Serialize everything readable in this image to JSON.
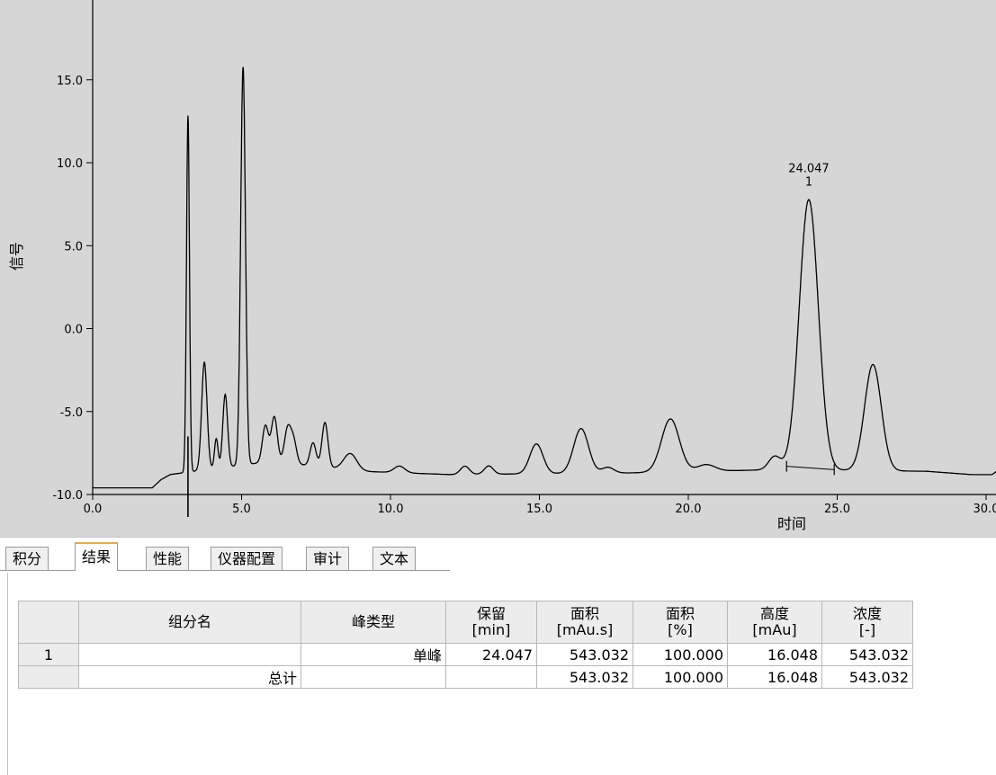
{
  "chart_data": {
    "type": "line",
    "title": "",
    "xlabel": "时间",
    "ylabel": "信号",
    "xlim": [
      0,
      30.5
    ],
    "ylim": [
      -10,
      19
    ],
    "x_ticks": [
      "0.0",
      "5.0",
      "10.0",
      "15.0",
      "20.0",
      "25.0",
      "30.0"
    ],
    "y_ticks": [
      "-10.0",
      "-5.0",
      "0.0",
      "5.0",
      "10.0",
      "15.0"
    ],
    "x_tick_values": [
      0,
      5,
      10,
      15,
      20,
      25,
      30
    ],
    "y_tick_values": [
      -10,
      -5,
      0,
      5,
      10,
      15
    ],
    "baseline": [
      [
        0,
        -9.6
      ],
      [
        2.0,
        -9.6
      ],
      [
        2.3,
        -9.1
      ],
      [
        2.6,
        -8.8
      ],
      [
        3.0,
        -8.7
      ],
      [
        6.0,
        -8.0
      ],
      [
        9.0,
        -8.6
      ],
      [
        12.0,
        -8.8
      ],
      [
        18.0,
        -8.7
      ],
      [
        23.0,
        -8.5
      ],
      [
        28.0,
        -8.6
      ],
      [
        29.5,
        -8.8
      ],
      [
        30.2,
        -8.8
      ],
      [
        30.5,
        -8.4
      ]
    ],
    "peaks": [
      {
        "rt": 3.2,
        "height": 21.5,
        "width": 0.05
      },
      {
        "rt": 3.75,
        "height": 6.5,
        "width": 0.09
      },
      {
        "rt": 4.15,
        "height": 1.8,
        "width": 0.06
      },
      {
        "rt": 4.45,
        "height": 4.4,
        "width": 0.08
      },
      {
        "rt": 5.05,
        "height": 24.0,
        "width": 0.08
      },
      {
        "rt": 5.8,
        "height": 2.2,
        "width": 0.1
      },
      {
        "rt": 6.1,
        "height": 2.7,
        "width": 0.1
      },
      {
        "rt": 6.55,
        "height": 2.1,
        "width": 0.11
      },
      {
        "rt": 6.75,
        "height": 1.3,
        "width": 0.1
      },
      {
        "rt": 7.4,
        "height": 1.4,
        "width": 0.1
      },
      {
        "rt": 7.8,
        "height": 2.7,
        "width": 0.1
      },
      {
        "rt": 8.65,
        "height": 1.0,
        "width": 0.22
      },
      {
        "rt": 10.3,
        "height": 0.4,
        "width": 0.18
      },
      {
        "rt": 12.5,
        "height": 0.5,
        "width": 0.15
      },
      {
        "rt": 13.3,
        "height": 0.5,
        "width": 0.15
      },
      {
        "rt": 14.9,
        "height": 1.8,
        "width": 0.22
      },
      {
        "rt": 16.4,
        "height": 2.7,
        "width": 0.25
      },
      {
        "rt": 17.3,
        "height": 0.35,
        "width": 0.2
      },
      {
        "rt": 19.4,
        "height": 3.2,
        "width": 0.3
      },
      {
        "rt": 20.6,
        "height": 0.4,
        "width": 0.3
      },
      {
        "rt": 22.9,
        "height": 0.8,
        "width": 0.2
      },
      {
        "rt": 24.047,
        "height": 16.3,
        "width": 0.32
      },
      {
        "rt": 26.2,
        "height": 6.4,
        "width": 0.28
      }
    ],
    "peak_annotation": {
      "retention_label": "24.047",
      "number_label": "1",
      "x": 24.047,
      "y": 7.9
    },
    "integration_baseline": [
      [
        23.3,
        -8.3
      ],
      [
        24.9,
        -8.5
      ]
    ],
    "grid": false,
    "colors": {
      "background": "#d6d6d6",
      "trace": "#000000"
    }
  },
  "tabs": [
    {
      "label": "积分"
    },
    {
      "label": "结果",
      "active": true
    },
    {
      "label": "性能"
    },
    {
      "label": "仪器配置"
    },
    {
      "label": "审计"
    },
    {
      "label": "文本"
    }
  ],
  "table": {
    "headers": {
      "component": "组分名",
      "peak_type": "峰类型",
      "retention": "保留",
      "retention_unit": "[min]",
      "area": "面积",
      "area_unit": "[mAu.s]",
      "area_pct": "面积",
      "area_pct_unit": "[%]",
      "height": "高度",
      "height_unit": "[mAu]",
      "conc": "浓度",
      "conc_unit": "[-]"
    },
    "rows": [
      {
        "index": "1",
        "component": "",
        "peak_type": "单峰",
        "retention": "24.047",
        "area": "543.032",
        "area_pct": "100.000",
        "height": "16.048",
        "conc": "543.032"
      }
    ],
    "total": {
      "label": "总计",
      "area": "543.032",
      "area_pct": "100.000",
      "height": "16.048",
      "conc": "543.032"
    }
  }
}
